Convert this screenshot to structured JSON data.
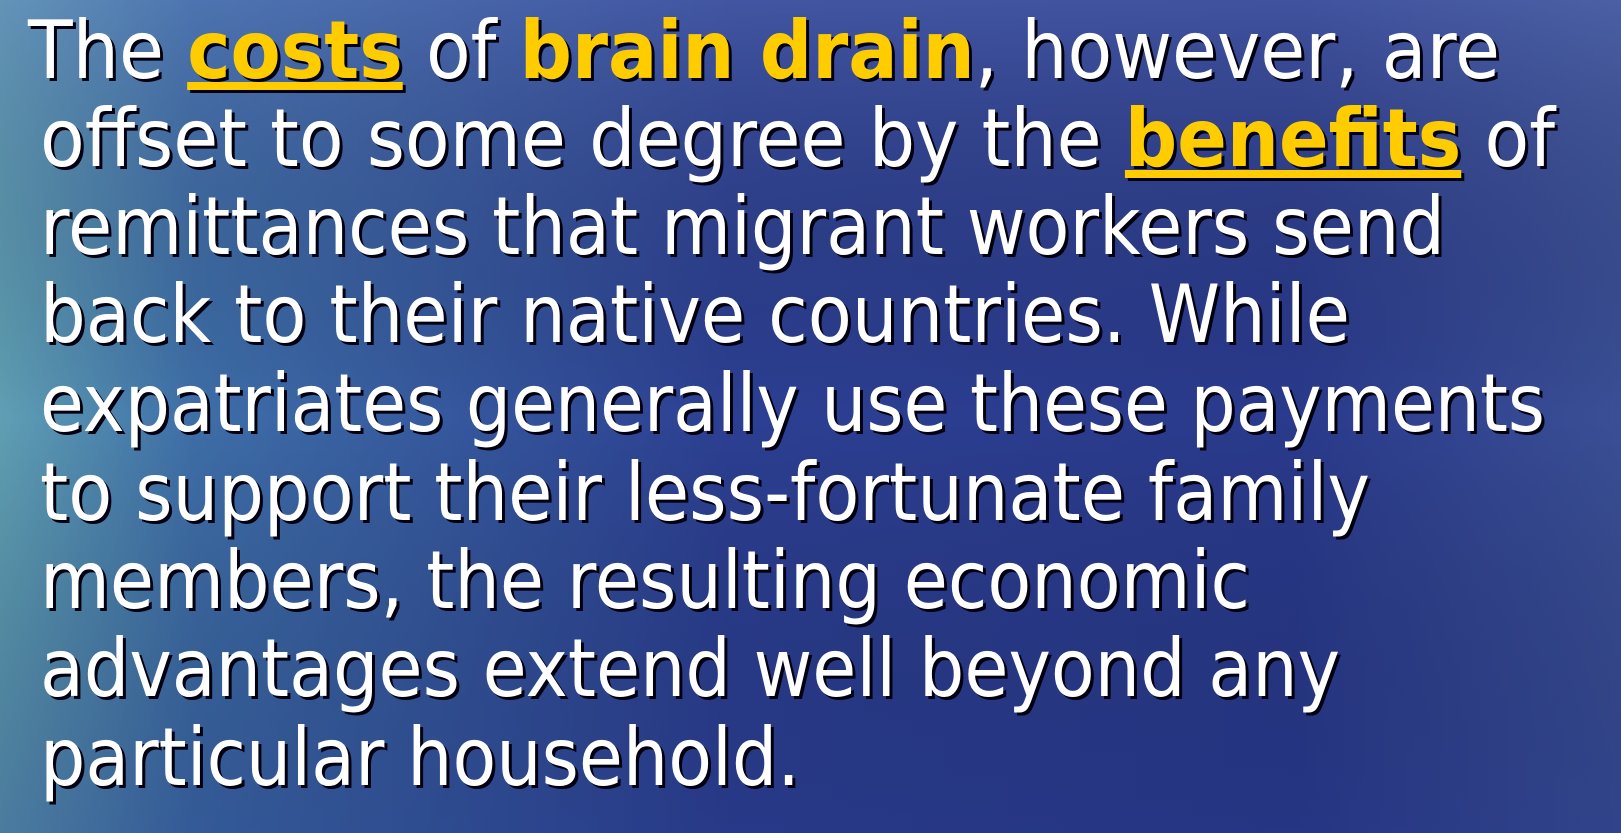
{
  "slide": {
    "lines": [
      [
        "The ",
        "costs",
        " of ",
        "brain drain",
        ", however, are"
      ],
      [
        "offset to some degree by the ",
        "benefits",
        " of"
      ],
      "remittances that migrant workers send",
      "back to their native countries. While",
      "expatriates generally use these payments",
      "to support their less-fortunate family",
      "members, the resulting economic",
      "advantages extend well beyond any",
      "particular household."
    ]
  }
}
